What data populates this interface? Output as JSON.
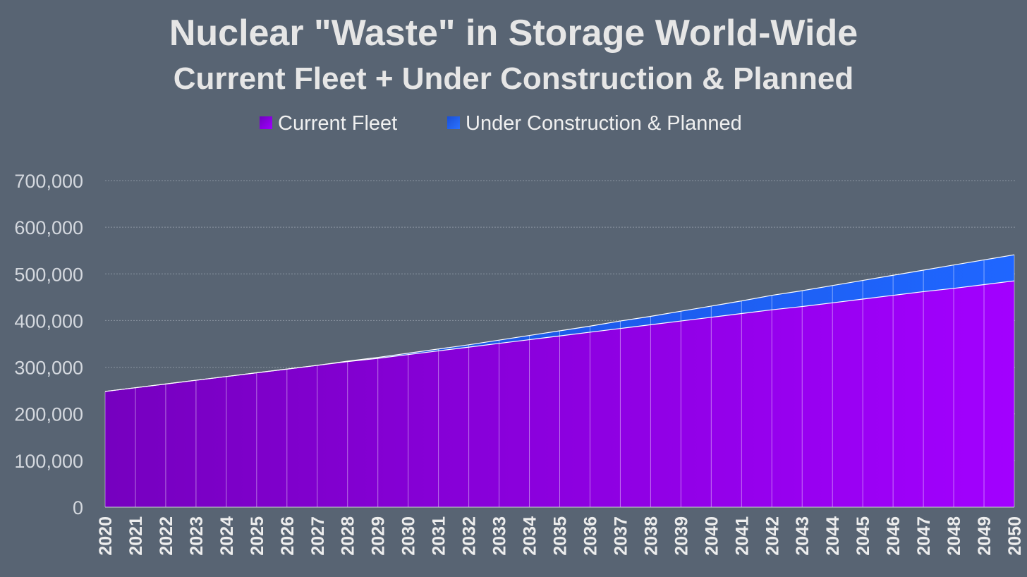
{
  "chart_data": {
    "type": "area",
    "stacked": true,
    "title": "Nuclear \"Waste\" in Storage World-Wide",
    "subtitle": "Current Fleet + Under Construction & Planned",
    "xlabel": "",
    "ylabel": "",
    "ylim": [
      0,
      700000
    ],
    "yticks": [
      0,
      100000,
      200000,
      300000,
      400000,
      500000,
      600000,
      700000
    ],
    "ytick_labels": [
      "0",
      "100,000",
      "200,000",
      "300,000",
      "400,000",
      "500,000",
      "600,000",
      "700,000"
    ],
    "grid": true,
    "legend_position": "top-center",
    "x": [
      "2020",
      "2021",
      "2022",
      "2023",
      "2024",
      "2025",
      "2026",
      "2027",
      "2028",
      "2029",
      "2030",
      "2031",
      "2032",
      "2033",
      "2034",
      "2035",
      "2036",
      "2037",
      "2038",
      "2039",
      "2040",
      "2041",
      "2042",
      "2043",
      "2044",
      "2045",
      "2046",
      "2047",
      "2048",
      "2049",
      "2050"
    ],
    "series": [
      {
        "name": "Current Fleet",
        "color": "#8f00e8",
        "values": [
          248000,
          256000,
          264000,
          272000,
          280000,
          288000,
          296000,
          304000,
          312000,
          319000,
          327000,
          335000,
          343000,
          351000,
          359000,
          367000,
          375000,
          383000,
          391000,
          399000,
          407000,
          415000,
          423000,
          430000,
          438000,
          446000,
          454000,
          462000,
          469000,
          477000,
          485000
        ]
      },
      {
        "name": "Under Construction & Planned",
        "color": "#1f5cf2",
        "values": [
          0,
          0,
          0,
          0,
          0,
          0,
          0,
          0,
          1000,
          2000,
          3000,
          4000,
          5000,
          7000,
          9000,
          11000,
          13000,
          16000,
          18000,
          21000,
          24000,
          27000,
          31000,
          34000,
          37000,
          40000,
          43000,
          46000,
          50000,
          53000,
          56000
        ]
      }
    ]
  }
}
